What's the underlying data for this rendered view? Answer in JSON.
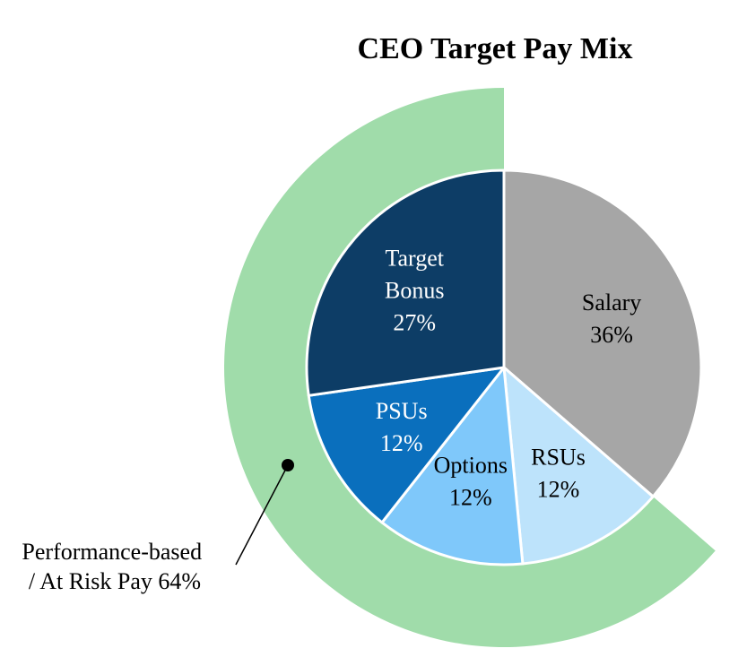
{
  "chart_data": {
    "type": "pie",
    "title": "CEO Target Pay Mix",
    "slices": [
      {
        "name": "Salary",
        "label_lines": [
          "Salary"
        ],
        "value": 36,
        "value_label": "36%",
        "color": "#a6a6a6",
        "text_color": "#000000"
      },
      {
        "name": "RSUs",
        "label_lines": [
          "RSUs"
        ],
        "value": 12,
        "value_label": "12%",
        "color": "#bde3fb",
        "text_color": "#000000"
      },
      {
        "name": "Options",
        "label_lines": [
          "Options"
        ],
        "value": 12,
        "value_label": "12%",
        "color": "#7fc8fa",
        "text_color": "#000000"
      },
      {
        "name": "PSUs",
        "label_lines": [
          "PSUs"
        ],
        "value": 12,
        "value_label": "12%",
        "color": "#0a6fbd",
        "text_color": "#ffffff"
      },
      {
        "name": "Target Bonus",
        "label_lines": [
          "Target",
          "Bonus"
        ],
        "value": 27,
        "value_label": "27%",
        "color": "#0d3d66",
        "text_color": "#ffffff"
      }
    ],
    "outer_ring": {
      "label_lines": [
        "Performance-based",
        "/ At Risk Pay 64%"
      ],
      "value": 64,
      "color": "#a0dcaa"
    }
  }
}
